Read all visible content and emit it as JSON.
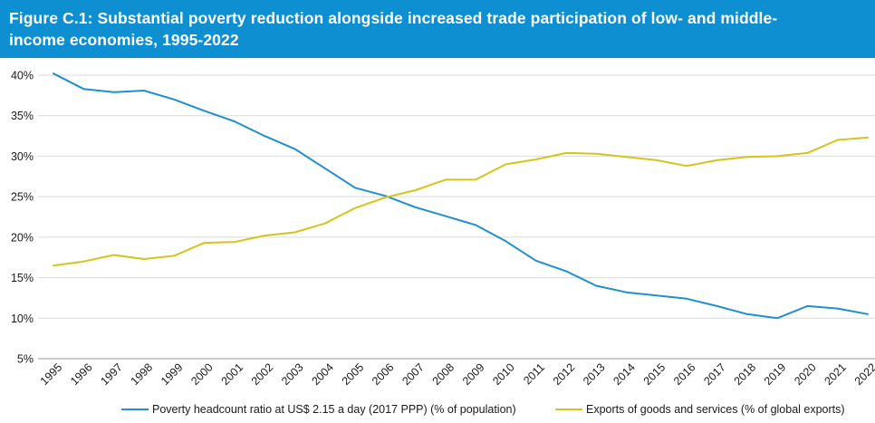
{
  "header": {
    "title": "Figure C.1: Substantial poverty reduction alongside increased trade participation of low- and middle-income economies, 1995-2022",
    "background_color": "#0d8fd2"
  },
  "chart_data": {
    "type": "line",
    "title": "Figure C.1: Substantial poverty reduction alongside increased trade participation of low- and middle-income economies, 1995-2022",
    "categories": [
      "1995",
      "1996",
      "1997",
      "1998",
      "1999",
      "2000",
      "2001",
      "2002",
      "2003",
      "2004",
      "2005",
      "2006",
      "2007",
      "2008",
      "2009",
      "2010",
      "2011",
      "2012",
      "2013",
      "2014",
      "2015",
      "2016",
      "2017",
      "2018",
      "2019",
      "2020",
      "2021",
      "2022"
    ],
    "y_ticks": [
      "5%",
      "10%",
      "15%",
      "20%",
      "25%",
      "30%",
      "35%",
      "40%"
    ],
    "ylim": [
      5,
      40
    ],
    "y_unit": "%",
    "grid": "horizontal",
    "legend_position": "bottom",
    "series": [
      {
        "name": "Poverty headcount ratio at US$ 2.15 a day (2017 PPP) (% of population)",
        "color": "#1f8fcf",
        "values": [
          40.2,
          38.3,
          37.9,
          38.1,
          37.0,
          35.6,
          34.3,
          32.5,
          30.9,
          28.5,
          26.1,
          25.1,
          23.7,
          22.6,
          21.5,
          19.5,
          17.1,
          15.8,
          14.0,
          13.2,
          12.8,
          12.4,
          11.5,
          10.5,
          10.0,
          11.5,
          11.2,
          10.5
        ]
      },
      {
        "name": "Exports of goods and services (% of global exports)",
        "color": "#d4c41c",
        "values": [
          16.5,
          17.0,
          17.8,
          17.3,
          17.7,
          19.3,
          19.4,
          20.2,
          20.6,
          21.7,
          23.6,
          24.9,
          25.8,
          27.1,
          27.1,
          29.0,
          29.6,
          30.4,
          30.3,
          29.9,
          29.5,
          28.8,
          29.5,
          29.9,
          30.0,
          30.4,
          32.0,
          32.3
        ]
      }
    ]
  }
}
